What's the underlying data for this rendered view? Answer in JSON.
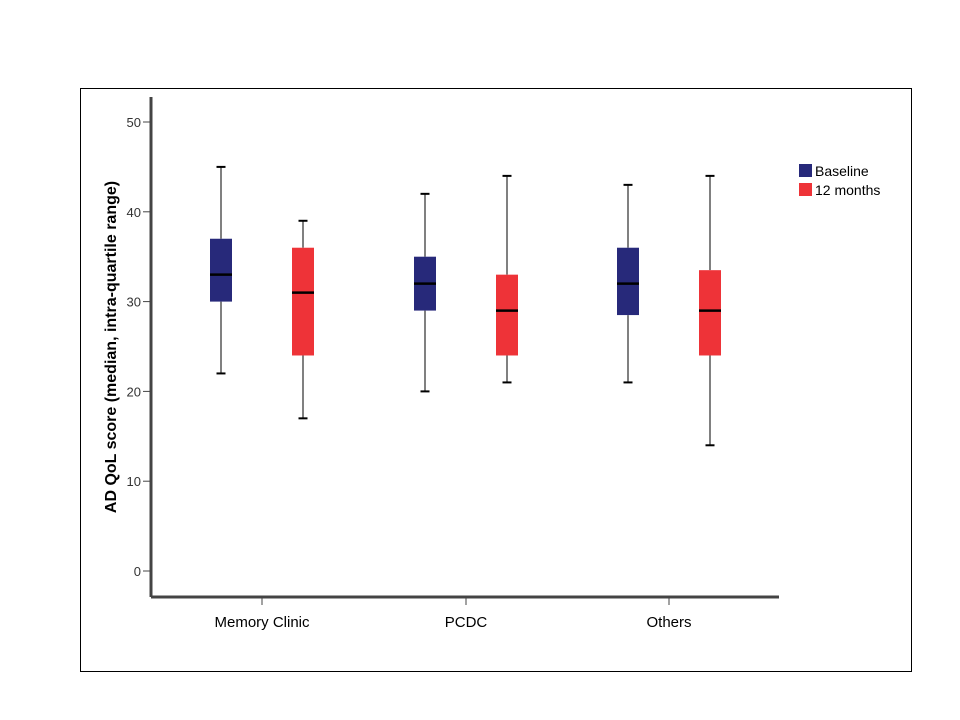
{
  "colors": {
    "baseline": "#27297a",
    "twelve_months": "#ee3338",
    "axis": "#444444"
  },
  "chart_data": {
    "type": "boxplot",
    "ylabel": "AD QoL score (median, intra-quartile range)",
    "xlabel": "",
    "ylim": [
      0,
      50
    ],
    "yticks": [
      0,
      10,
      20,
      30,
      40,
      50
    ],
    "categories": [
      "Memory Clinic",
      "PCDC",
      "Others"
    ],
    "legend_position": "top-right",
    "series": [
      {
        "name": "Baseline",
        "color": "#27297a",
        "boxes": [
          {
            "min": 22,
            "q1": 30,
            "median": 33,
            "q3": 37,
            "max": 45
          },
          {
            "min": 20,
            "q1": 29,
            "median": 32,
            "q3": 35,
            "max": 42
          },
          {
            "min": 21,
            "q1": 28.5,
            "median": 32,
            "q3": 36,
            "max": 43
          }
        ]
      },
      {
        "name": "12 months",
        "color": "#ee3338",
        "boxes": [
          {
            "min": 17,
            "q1": 24,
            "median": 31,
            "q3": 36,
            "max": 39
          },
          {
            "min": 21,
            "q1": 24,
            "median": 29,
            "q3": 33,
            "max": 44
          },
          {
            "min": 14,
            "q1": 24,
            "median": 29,
            "q3": 33.5,
            "max": 44
          }
        ]
      }
    ]
  }
}
